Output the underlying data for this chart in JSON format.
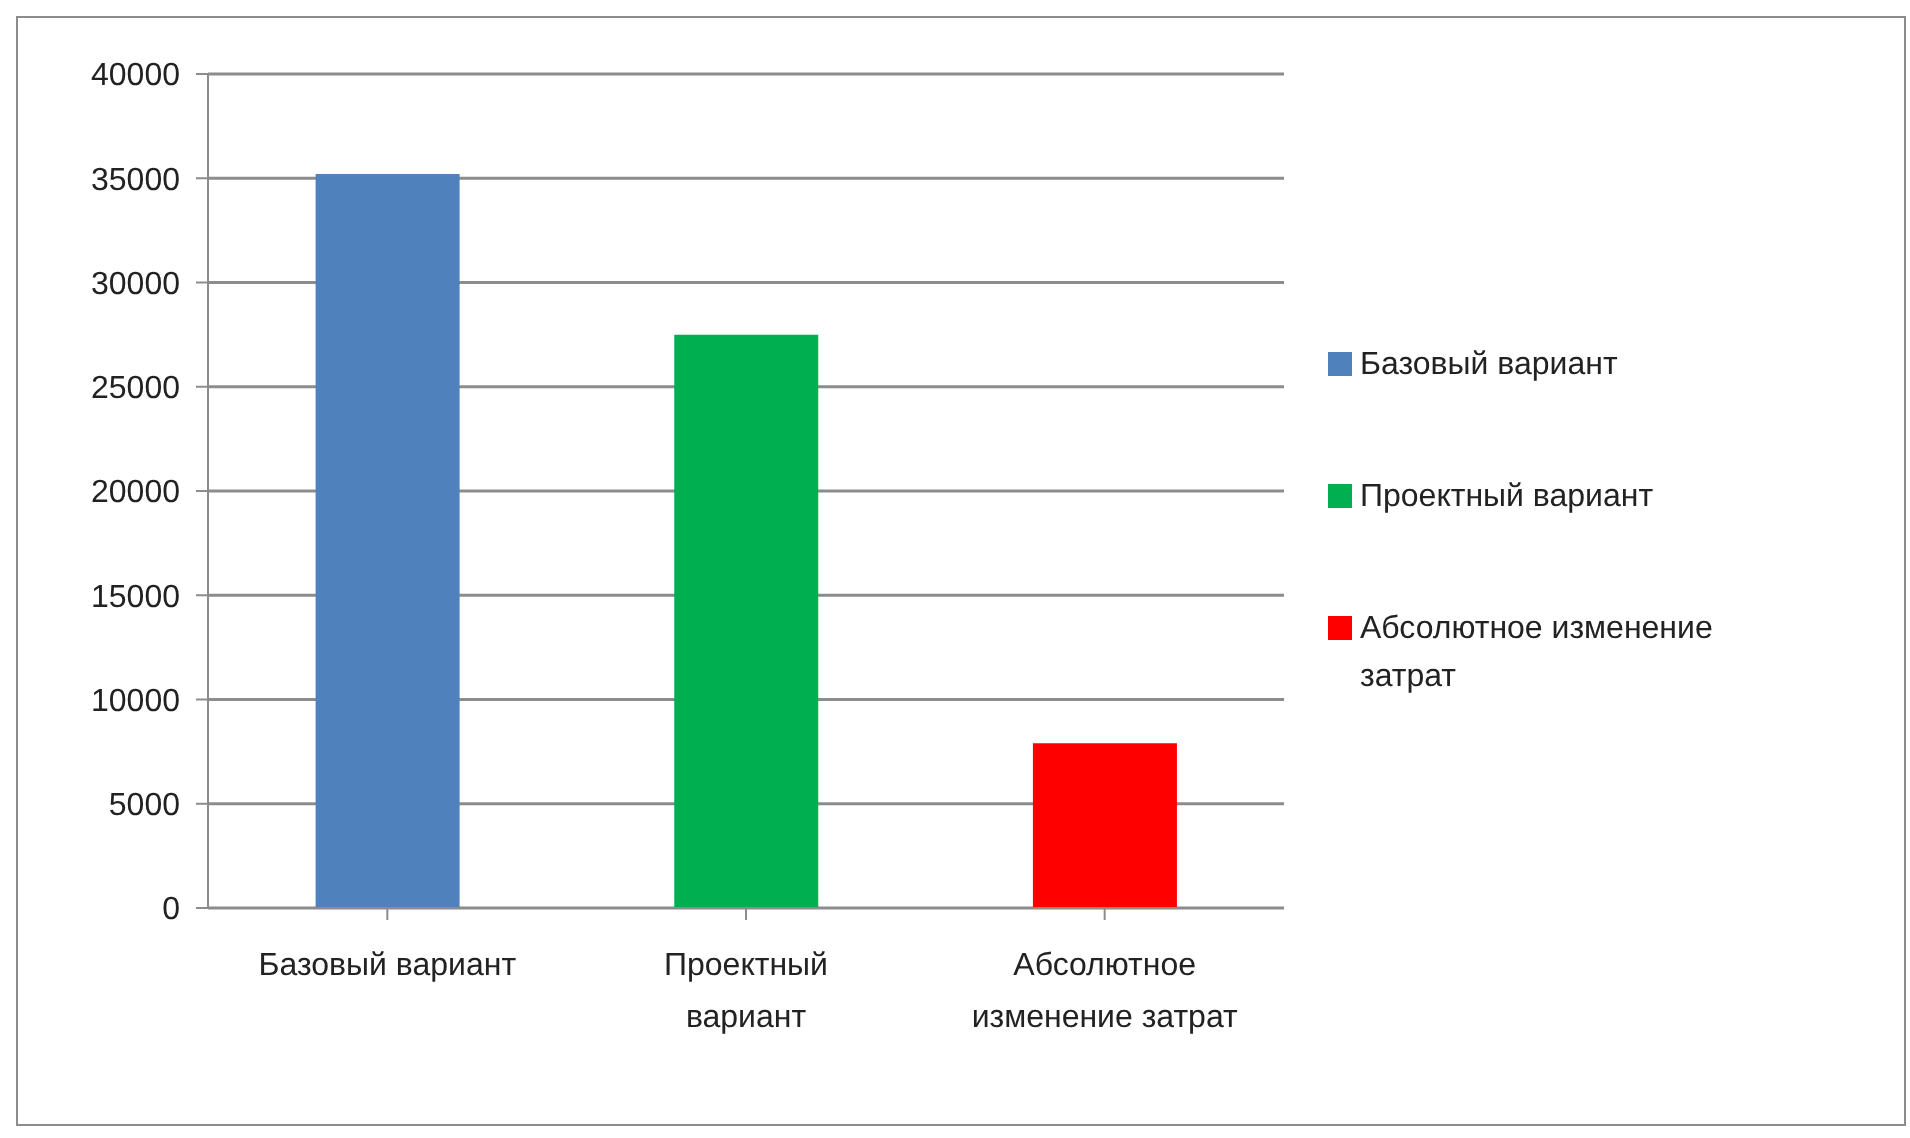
{
  "chart_data": {
    "type": "bar",
    "categories": [
      "Базовый вариант",
      "Проектный вариант",
      "Абсолютное изменение затрат"
    ],
    "series": [
      {
        "name": "Базовый вариант",
        "color": "#4f81bd",
        "values": [
          35200,
          null,
          null
        ]
      },
      {
        "name": "Проектный вариант",
        "color": "#00b050",
        "values": [
          null,
          27500,
          null
        ]
      },
      {
        "name": "Абсолютное изменение затрат",
        "color": "#ff0000",
        "values": [
          null,
          null,
          7900
        ]
      }
    ],
    "ylim": [
      0,
      40000
    ],
    "yticks": [
      0,
      5000,
      10000,
      15000,
      20000,
      25000,
      30000,
      35000,
      40000
    ],
    "grid": "y",
    "legend": "right"
  }
}
